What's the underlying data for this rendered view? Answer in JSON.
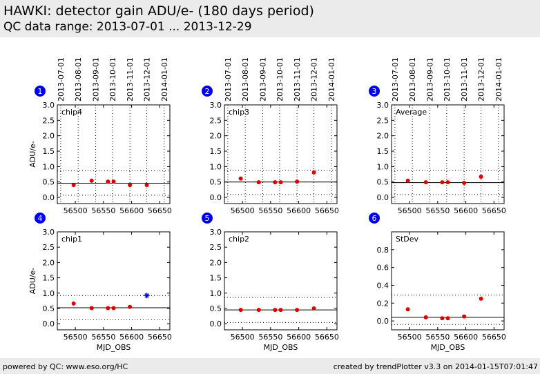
{
  "header": {
    "title": "HAWKI: detector gain ADU/e- (180 days period)",
    "subtitle": "QC data range: 2013-07-01 ... 2013-12-29"
  },
  "footer": {
    "left": "powered by QC: www.eso.org/HC",
    "right": "created by trendPlotter v3.3 on 2014-01-15T07:01:47"
  },
  "colors": {
    "marker": "#dd0000",
    "outlier_marker": "#0000ee",
    "badge": "#0000ee",
    "background_band": "#ebebeb"
  },
  "chart_data": [
    {
      "type": "scatter",
      "panel_number": "1",
      "label": "chip4",
      "ylabel": "ADU/e-",
      "xlabel": "",
      "xlim": [
        56468,
        56668
      ],
      "ylim": [
        -0.2,
        3.0
      ],
      "yticks": [
        "0.0",
        "0.5",
        "1.0",
        "1.5",
        "2.0",
        "2.5",
        "3.0"
      ],
      "ytick_values": [
        0,
        0.5,
        1,
        1.5,
        2,
        2.5,
        3
      ],
      "xticks": [
        "56500",
        "56550",
        "56600",
        "56650"
      ],
      "xtick_values": [
        56500,
        56550,
        56600,
        56650
      ],
      "date_ticks": [
        "2013-07-01",
        "2013-08-01",
        "2013-09-01",
        "2013-10-01",
        "2013-11-01",
        "2013-12-01",
        "2014-01-01"
      ],
      "date_tick_values": [
        56474,
        56505,
        56536,
        56566,
        56597,
        56627,
        56658
      ],
      "reference_line": 0.46,
      "limit_lines": [
        0.86,
        0.07
      ],
      "points": [
        {
          "x": 56497,
          "y": 0.4
        },
        {
          "x": 56529,
          "y": 0.54
        },
        {
          "x": 56558,
          "y": 0.51
        },
        {
          "x": 56568,
          "y": 0.51
        },
        {
          "x": 56597,
          "y": 0.4
        },
        {
          "x": 56627,
          "y": 0.4
        }
      ],
      "outliers": []
    },
    {
      "type": "scatter",
      "panel_number": "2",
      "label": "chip3",
      "ylabel": "",
      "xlabel": "",
      "xlim": [
        56468,
        56668
      ],
      "ylim": [
        -0.2,
        3.0
      ],
      "yticks": [
        "0.0",
        "0.5",
        "1.0",
        "1.5",
        "2.0",
        "2.5",
        "3.0"
      ],
      "ytick_values": [
        0,
        0.5,
        1,
        1.5,
        2,
        2.5,
        3
      ],
      "xticks": [
        "56500",
        "56550",
        "56600",
        "56650"
      ],
      "xtick_values": [
        56500,
        56550,
        56600,
        56650
      ],
      "date_ticks": [
        "2013-07-01",
        "2013-08-01",
        "2013-09-01",
        "2013-10-01",
        "2013-11-01",
        "2013-12-01",
        "2014-01-01"
      ],
      "date_tick_values": [
        56474,
        56505,
        56536,
        56566,
        56597,
        56627,
        56658
      ],
      "reference_line": 0.5,
      "limit_lines": [
        0.87,
        0.09
      ],
      "points": [
        {
          "x": 56497,
          "y": 0.61
        },
        {
          "x": 56529,
          "y": 0.49
        },
        {
          "x": 56558,
          "y": 0.49
        },
        {
          "x": 56568,
          "y": 0.49
        },
        {
          "x": 56597,
          "y": 0.51
        },
        {
          "x": 56627,
          "y": 0.81
        }
      ],
      "outliers": []
    },
    {
      "type": "scatter",
      "panel_number": "3",
      "label": "Average",
      "ylabel": "",
      "xlabel": "",
      "xlim": [
        56468,
        56668
      ],
      "ylim": [
        -0.2,
        3.0
      ],
      "yticks": [
        "0.0",
        "0.5",
        "1.0",
        "1.5",
        "2.0",
        "2.5",
        "3.0"
      ],
      "ytick_values": [
        0,
        0.5,
        1,
        1.5,
        2,
        2.5,
        3
      ],
      "xticks": [
        "56500",
        "56550",
        "56600",
        "56650"
      ],
      "xtick_values": [
        56500,
        56550,
        56600,
        56650
      ],
      "date_ticks": [
        "2013-07-01",
        "2013-08-01",
        "2013-09-01",
        "2013-10-01",
        "2013-11-01",
        "2013-12-01",
        "2014-01-01"
      ],
      "date_tick_values": [
        56474,
        56505,
        56536,
        56566,
        56597,
        56627,
        56658
      ],
      "reference_line": 0.48,
      "limit_lines": [
        0.87,
        0.09
      ],
      "points": [
        {
          "x": 56497,
          "y": 0.54
        },
        {
          "x": 56529,
          "y": 0.49
        },
        {
          "x": 56558,
          "y": 0.49
        },
        {
          "x": 56568,
          "y": 0.49
        },
        {
          "x": 56597,
          "y": 0.47
        },
        {
          "x": 56627,
          "y": 0.67
        }
      ],
      "outliers": []
    },
    {
      "type": "scatter",
      "panel_number": "4",
      "label": "chip1",
      "ylabel": "ADU/e-",
      "xlabel": "MJD_OBS",
      "xlim": [
        56468,
        56668
      ],
      "ylim": [
        -0.2,
        3.0
      ],
      "yticks": [
        "0.0",
        "0.5",
        "1.0",
        "1.5",
        "2.0",
        "2.5",
        "3.0"
      ],
      "ytick_values": [
        0,
        0.5,
        1,
        1.5,
        2,
        2.5,
        3
      ],
      "xticks": [
        "56500",
        "56550",
        "56600",
        "56650"
      ],
      "xtick_values": [
        56500,
        56550,
        56600,
        56650
      ],
      "date_ticks": [],
      "date_tick_values": [],
      "reference_line": 0.52,
      "limit_lines": [
        0.92,
        0.13
      ],
      "points": [
        {
          "x": 56497,
          "y": 0.66
        },
        {
          "x": 56529,
          "y": 0.51
        },
        {
          "x": 56558,
          "y": 0.51
        },
        {
          "x": 56568,
          "y": 0.51
        },
        {
          "x": 56597,
          "y": 0.55
        }
      ],
      "outliers": [
        {
          "x": 56627,
          "y": 0.92
        }
      ]
    },
    {
      "type": "scatter",
      "panel_number": "5",
      "label": "chip2",
      "ylabel": "",
      "xlabel": "MJD_OBS",
      "xlim": [
        56468,
        56668
      ],
      "ylim": [
        -0.2,
        3.0
      ],
      "yticks": [
        "0.0",
        "0.5",
        "1.0",
        "1.5",
        "2.0",
        "2.5",
        "3.0"
      ],
      "ytick_values": [
        0,
        0.5,
        1,
        1.5,
        2,
        2.5,
        3
      ],
      "xticks": [
        "56500",
        "56550",
        "56600",
        "56650"
      ],
      "xtick_values": [
        56500,
        56550,
        56600,
        56650
      ],
      "date_ticks": [],
      "date_tick_values": [],
      "reference_line": 0.45,
      "limit_lines": [
        0.86,
        0.04
      ],
      "points": [
        {
          "x": 56497,
          "y": 0.45
        },
        {
          "x": 56529,
          "y": 0.45
        },
        {
          "x": 56558,
          "y": 0.45
        },
        {
          "x": 56568,
          "y": 0.45
        },
        {
          "x": 56597,
          "y": 0.45
        },
        {
          "x": 56627,
          "y": 0.5
        }
      ],
      "outliers": []
    },
    {
      "type": "scatter",
      "panel_number": "6",
      "label": "StDev",
      "ylabel": "",
      "xlabel": "MJD_OBS",
      "xlim": [
        56468,
        56668
      ],
      "ylim": [
        -0.1,
        1.0
      ],
      "yticks": [
        "0.0",
        "0.2",
        "0.4",
        "0.6",
        "0.8"
      ],
      "ytick_values": [
        0,
        0.2,
        0.4,
        0.6,
        0.8
      ],
      "xticks": [
        "56500",
        "56550",
        "56600",
        "56650"
      ],
      "xtick_values": [
        56500,
        56550,
        56600,
        56650
      ],
      "date_ticks": [],
      "date_tick_values": [],
      "reference_line": 0.04,
      "limit_lines": [
        0.29,
        -0.04
      ],
      "points": [
        {
          "x": 56497,
          "y": 0.13
        },
        {
          "x": 56529,
          "y": 0.04
        },
        {
          "x": 56558,
          "y": 0.03
        },
        {
          "x": 56568,
          "y": 0.03
        },
        {
          "x": 56597,
          "y": 0.05
        },
        {
          "x": 56627,
          "y": 0.25
        }
      ],
      "outliers": []
    }
  ]
}
